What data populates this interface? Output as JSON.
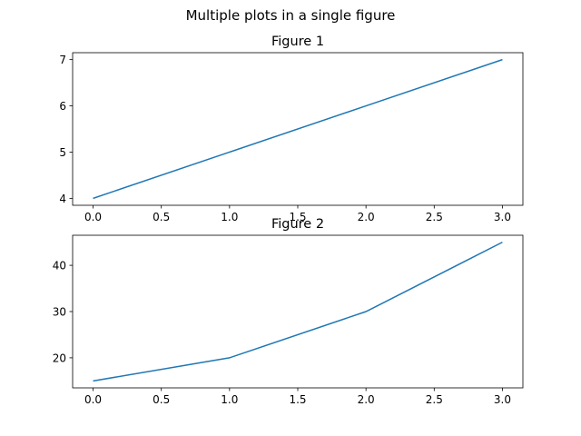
{
  "figure": {
    "suptitle": "Multiple plots in a single figure",
    "line_color": "#1f77b4"
  },
  "chart_data": [
    {
      "type": "line",
      "title": "Figure 1",
      "x": [
        0,
        1,
        2,
        3
      ],
      "series": [
        {
          "name": "",
          "values": [
            4,
            5,
            6,
            7
          ]
        }
      ],
      "xlabel": "",
      "ylabel": "",
      "xlim": [
        -0.15,
        3.15
      ],
      "ylim": [
        3.85,
        7.15
      ],
      "xticks": [
        "0.0",
        "0.5",
        "1.0",
        "1.5",
        "2.0",
        "2.5",
        "3.0"
      ],
      "yticks": [
        "4",
        "5",
        "6",
        "7"
      ],
      "grid": false
    },
    {
      "type": "line",
      "title": "Figure 2",
      "x": [
        0,
        1,
        2,
        3
      ],
      "series": [
        {
          "name": "",
          "values": [
            15,
            20,
            30,
            45
          ]
        }
      ],
      "xlabel": "",
      "ylabel": "",
      "xlim": [
        -0.15,
        3.15
      ],
      "ylim": [
        13.5,
        46.5
      ],
      "xticks": [
        "0.0",
        "0.5",
        "1.0",
        "1.5",
        "2.0",
        "2.5",
        "3.0"
      ],
      "yticks": [
        "20",
        "30",
        "40"
      ],
      "grid": false
    }
  ]
}
